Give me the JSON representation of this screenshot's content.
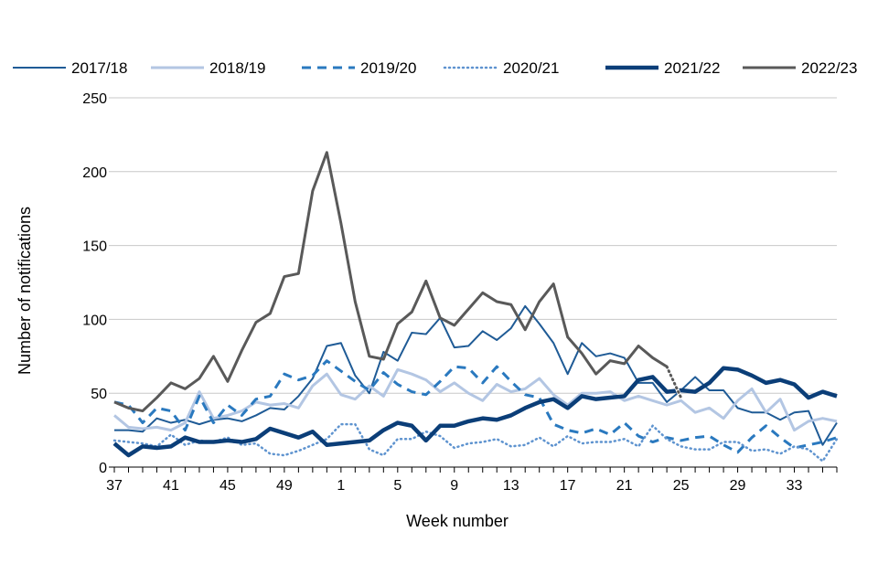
{
  "chart_data": {
    "type": "line",
    "title": "",
    "xlabel": "Week number",
    "ylabel": "Number of notifications",
    "ylim": [
      0,
      250
    ],
    "yticks": [
      0,
      50,
      100,
      150,
      200,
      250
    ],
    "x_tick_labels": [
      "37",
      "41",
      "45",
      "49",
      "1",
      "5",
      "9",
      "13",
      "17",
      "21",
      "25",
      "29",
      "33"
    ],
    "grid": true,
    "legend_position": "top",
    "x": [
      37,
      38,
      39,
      40,
      41,
      42,
      43,
      44,
      45,
      46,
      47,
      48,
      49,
      50,
      51,
      52,
      1,
      2,
      3,
      4,
      5,
      6,
      7,
      8,
      9,
      10,
      11,
      12,
      13,
      14,
      15,
      16,
      17,
      18,
      19,
      20,
      21,
      22,
      23,
      24,
      25,
      26,
      27,
      28,
      29,
      30,
      31,
      32,
      33,
      34,
      35,
      36
    ],
    "series": [
      {
        "name": "2017/18",
        "color": "#1f5b96",
        "style": "solid-thin",
        "values": [
          25,
          25,
          24,
          33,
          30,
          32,
          29,
          32,
          33,
          31,
          35,
          40,
          39,
          48,
          60,
          82,
          84,
          62,
          50,
          78,
          72,
          91,
          90,
          101,
          81,
          82,
          92,
          86,
          94,
          109,
          97,
          84,
          63,
          84,
          75,
          77,
          74,
          57,
          57,
          44,
          52,
          61,
          52,
          52,
          40,
          37,
          37,
          32,
          37,
          38,
          15,
          30
        ]
      },
      {
        "name": "2018/19",
        "color": "#b3c6e3",
        "style": "solid-medium",
        "values": [
          35,
          27,
          26,
          27,
          25,
          30,
          51,
          33,
          35,
          38,
          44,
          42,
          43,
          40,
          55,
          63,
          49,
          46,
          55,
          48,
          66,
          63,
          59,
          51,
          57,
          50,
          45,
          56,
          51,
          53,
          60,
          49,
          42,
          50,
          50,
          51,
          45,
          48,
          45,
          42,
          45,
          37,
          40,
          33,
          45,
          53,
          37,
          46,
          25,
          31,
          33,
          31
        ]
      },
      {
        "name": "2019/20",
        "color": "#2a79bf",
        "style": "dashed",
        "values": [
          44,
          42,
          30,
          40,
          38,
          25,
          48,
          30,
          42,
          35,
          46,
          48,
          63,
          59,
          62,
          72,
          65,
          58,
          52,
          64,
          56,
          51,
          49,
          58,
          68,
          67,
          57,
          68,
          58,
          49,
          47,
          29,
          25,
          23,
          26,
          22,
          30,
          21,
          17,
          20,
          18,
          20,
          21,
          15,
          10,
          20,
          28,
          20,
          13,
          15,
          17,
          20
        ]
      },
      {
        "name": "2020/21",
        "color": "#5e93cf",
        "style": "dotted",
        "values": [
          18,
          17,
          16,
          14,
          22,
          15,
          18,
          17,
          20,
          15,
          16,
          9,
          8,
          11,
          15,
          19,
          29,
          29,
          12,
          8,
          19,
          19,
          24,
          21,
          13,
          16,
          17,
          19,
          14,
          15,
          20,
          14,
          21,
          16,
          17,
          17,
          19,
          14,
          28,
          19,
          14,
          12,
          12,
          17,
          17,
          11,
          12,
          9,
          14,
          12,
          4,
          19
        ]
      },
      {
        "name": "2021/22",
        "color": "#0b3e78",
        "style": "solid-thick",
        "values": [
          16,
          8,
          14,
          13,
          14,
          20,
          17,
          17,
          18,
          17,
          19,
          26,
          23,
          20,
          24,
          15,
          16,
          17,
          18,
          25,
          30,
          28,
          18,
          28,
          28,
          31,
          33,
          32,
          35,
          40,
          44,
          46,
          40,
          48,
          46,
          47,
          48,
          59,
          61,
          51,
          52,
          51,
          57,
          67,
          66,
          62,
          57,
          59,
          56,
          47,
          51,
          48
        ]
      },
      {
        "name": "2022/23",
        "color": "#595959",
        "style": "solid-medium",
        "values": [
          44,
          40,
          38,
          47,
          57,
          53,
          60,
          75,
          58,
          79,
          98,
          104,
          129,
          131,
          187,
          213,
          165,
          112,
          75,
          73,
          97,
          105,
          126,
          101,
          96,
          107,
          118,
          112,
          110,
          93,
          112,
          124,
          88,
          77,
          63,
          72,
          70,
          82,
          74,
          68,
          47,
          null,
          null,
          null,
          null,
          null,
          null,
          null,
          null,
          null,
          null,
          null
        ]
      }
    ]
  }
}
